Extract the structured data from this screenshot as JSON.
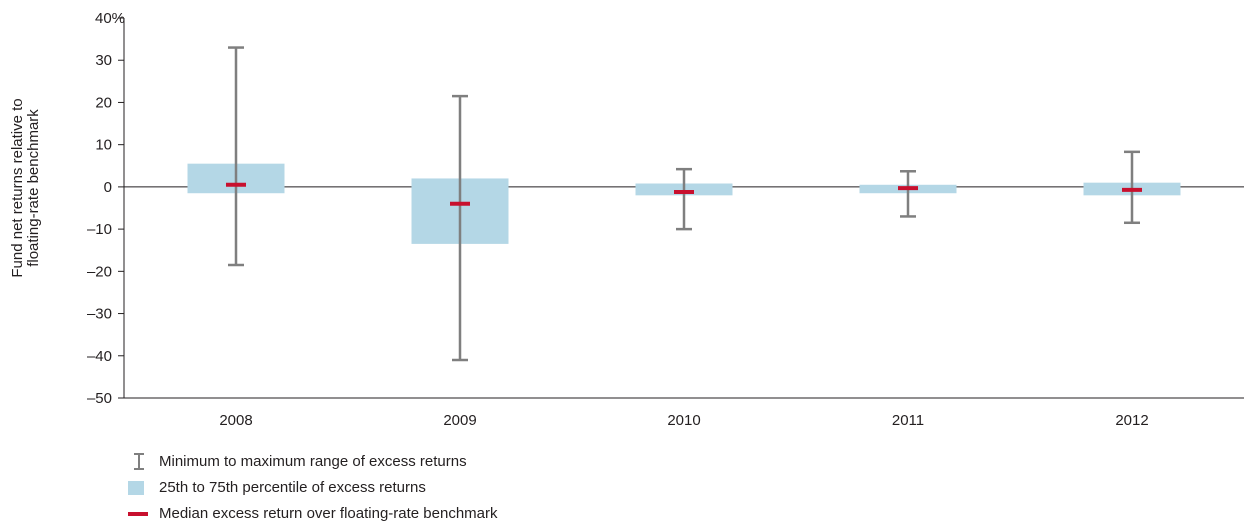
{
  "chart_data": {
    "type": "box",
    "ylabel_lines": [
      "Fund net returns relative to",
      "floating-rate benchmark"
    ],
    "y_unit_suffix": "%",
    "ylim": [
      -50,
      40
    ],
    "y_ticks": [
      {
        "value": 40,
        "label": "40%"
      },
      {
        "value": 30,
        "label": "30"
      },
      {
        "value": 20,
        "label": "20"
      },
      {
        "value": 10,
        "label": "10"
      },
      {
        "value": 0,
        "label": "0"
      },
      {
        "value": -10,
        "label": "–10"
      },
      {
        "value": -20,
        "label": "–20"
      },
      {
        "value": -30,
        "label": "–30"
      },
      {
        "value": -40,
        "label": "–40"
      },
      {
        "value": -50,
        "label": "–50"
      }
    ],
    "categories": [
      "2008",
      "2009",
      "2010",
      "2011",
      "2012"
    ],
    "series": [
      {
        "name": "Minimum to maximum range of excess returns",
        "kind": "range",
        "min": [
          -18.5,
          -41.0,
          -10.0,
          -7.0,
          -8.5
        ],
        "max": [
          33.0,
          21.5,
          4.2,
          3.7,
          8.3
        ]
      },
      {
        "name": "25th to 75th percentile of excess returns",
        "kind": "box",
        "q1": [
          -1.5,
          -13.5,
          -2.0,
          -1.5,
          -2.0
        ],
        "q3": [
          5.5,
          2.0,
          0.8,
          0.5,
          1.0
        ]
      },
      {
        "name": "Median excess return over floating-rate benchmark",
        "kind": "median",
        "values": [
          0.5,
          -4.0,
          -1.2,
          -0.3,
          -0.7
        ]
      }
    ],
    "colors": {
      "range": "#7f7f7f",
      "box": "#b4d7e6",
      "median": "#c8102e",
      "axis": "#231f20"
    },
    "grid": false,
    "legend_position": "bottom-left"
  },
  "legend": [
    {
      "symbol": "range-icon",
      "label": "Minimum to maximum range of excess returns"
    },
    {
      "symbol": "box-swatch-icon",
      "label": "25th to 75th percentile of excess returns"
    },
    {
      "symbol": "median-line-icon",
      "label": "Median excess return over floating-rate benchmark"
    }
  ]
}
